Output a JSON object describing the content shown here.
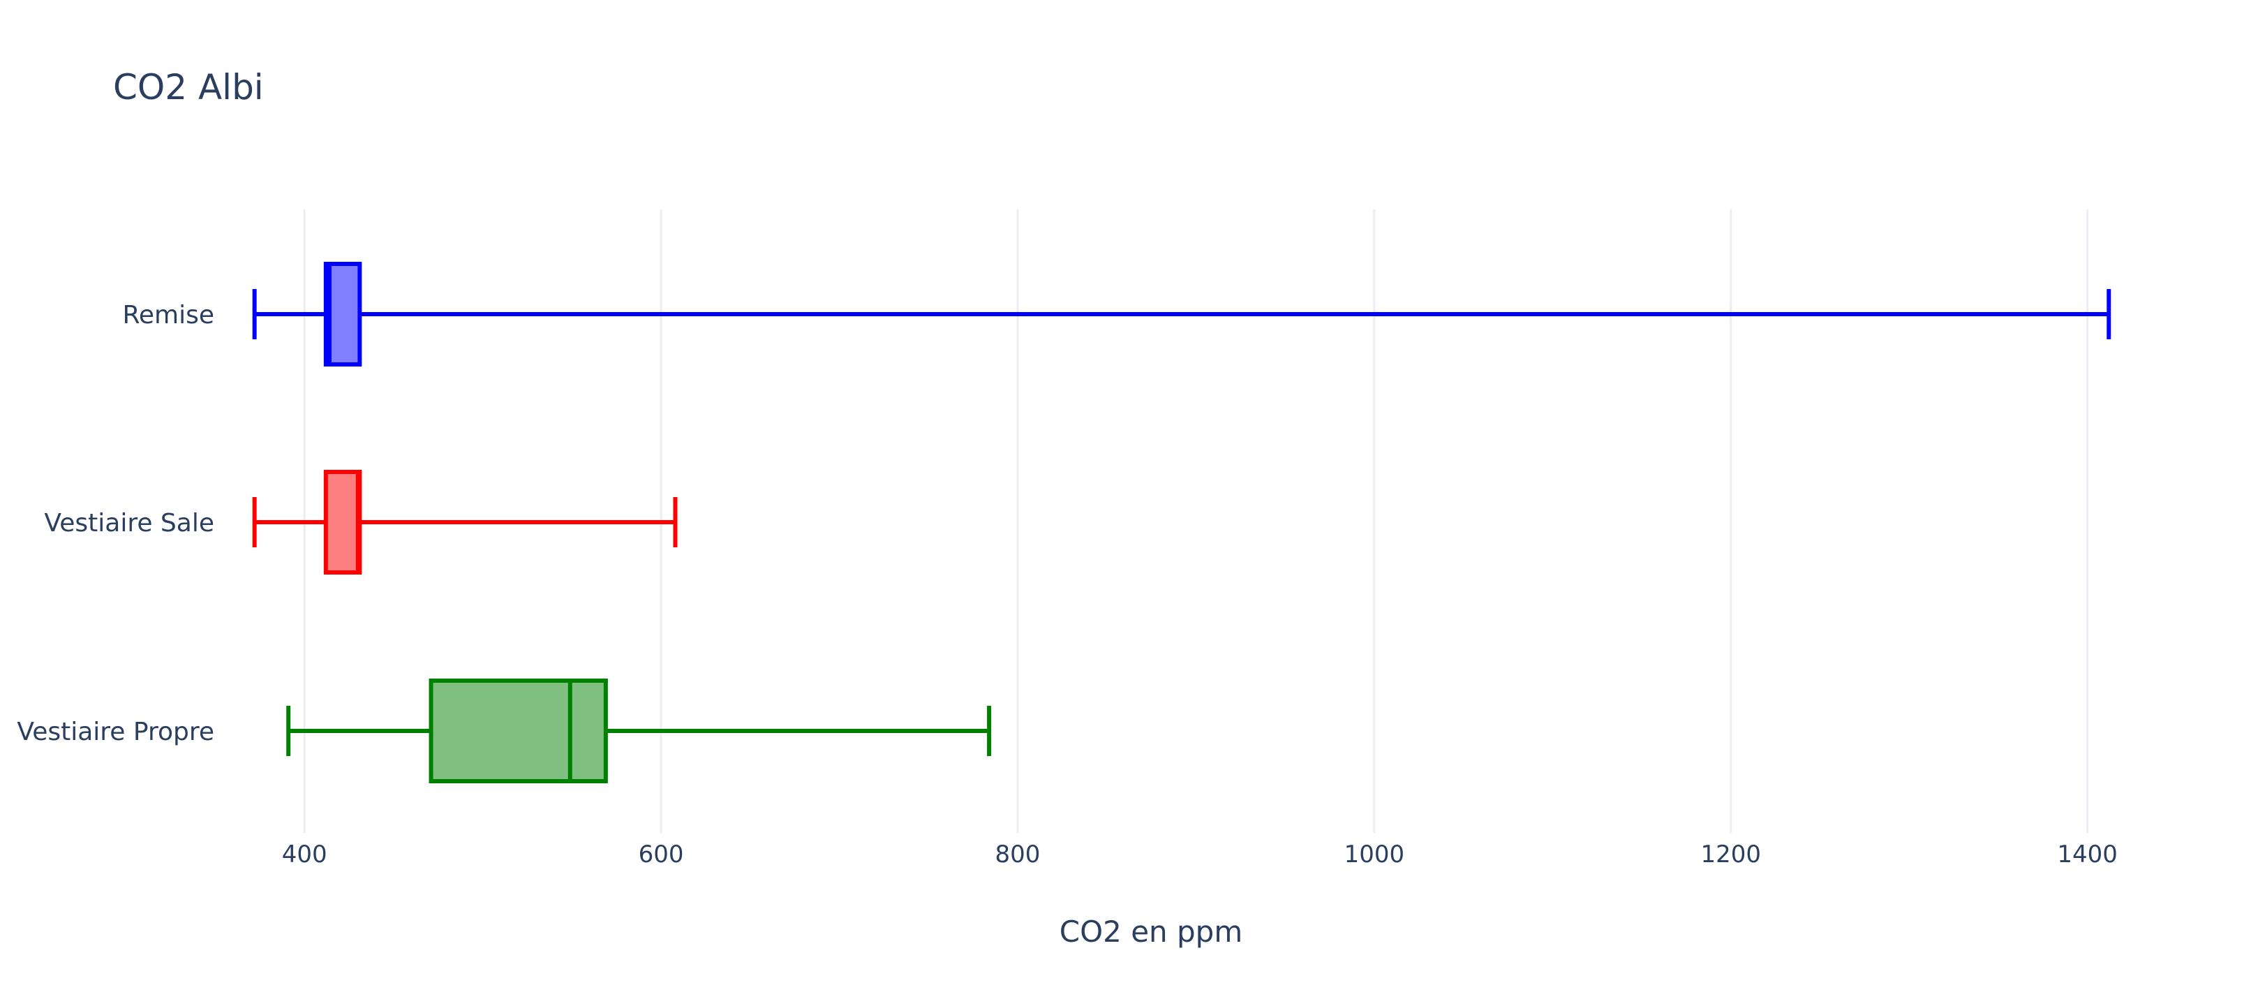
{
  "chart_data": {
    "type": "box",
    "title": "CO2 Albi",
    "xlabel": "CO2 en ppm",
    "ylabel": "",
    "orientation": "horizontal",
    "xlim": [
      360,
      1480
    ],
    "xticks": [
      400,
      600,
      800,
      1000,
      1200,
      1400
    ],
    "grid": true,
    "legend": "none",
    "series": [
      {
        "name": "Remise",
        "color": "#0000ff",
        "fill": "#8080ff",
        "min": 372,
        "q1": 412,
        "median": 414,
        "q3": 431,
        "max": 1412
      },
      {
        "name": "Vestiaire Sale",
        "color": "#ff0000",
        "fill": "#ff8080",
        "min": 372,
        "q1": 412,
        "median": 430,
        "q3": 431,
        "max": 608
      },
      {
        "name": "Vestiaire Propre",
        "color": "#008000",
        "fill": "#80c080",
        "min": 391,
        "q1": 471,
        "median": 549,
        "q3": 569,
        "max": 784
      }
    ]
  }
}
